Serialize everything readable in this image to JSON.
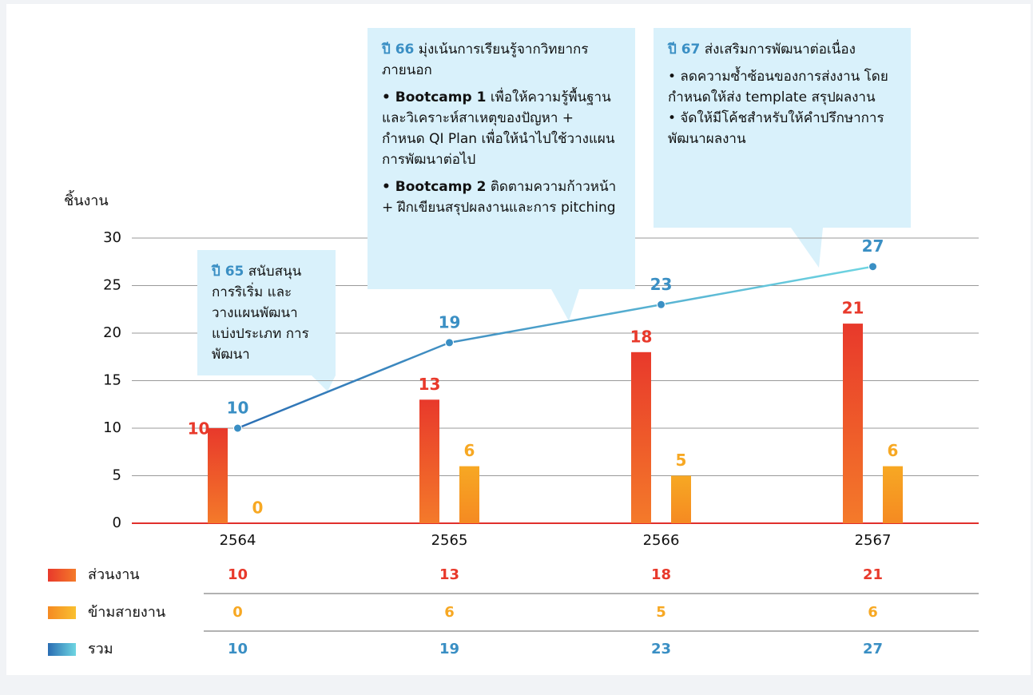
{
  "chart_data": {
    "type": "bar",
    "y_label": "ชิ้นงาน",
    "categories": [
      "2564",
      "2565",
      "2566",
      "2567"
    ],
    "ylim": [
      0,
      30
    ],
    "yticks": [
      0,
      5,
      10,
      15,
      20,
      25,
      30
    ],
    "grid": true,
    "series": [
      {
        "name": "ส่วนงาน",
        "type": "bar",
        "color": "#e8392b",
        "values": [
          10,
          13,
          18,
          21
        ]
      },
      {
        "name": "ข้ามสายงาน",
        "type": "bar",
        "color": "#f7a823",
        "values": [
          0,
          6,
          5,
          6
        ]
      },
      {
        "name": "รวม",
        "type": "line",
        "color": "#3a8fc4",
        "values": [
          10,
          19,
          23,
          27
        ]
      }
    ],
    "annotations": [
      {
        "title": "ปี 65",
        "text": "สนับสนุนการริเริ่ม และวางแผนพัฒนา แบ่งประเภท การพัฒนา",
        "items": []
      },
      {
        "title": "ปี 66",
        "text": "มุ่งเน้นการเรียนรู้จากวิทยากรภายนอก",
        "items": [
          {
            "bold": "• Bootcamp 1",
            "text": "เพื่อให้ความรู้พื้นฐาน และวิเคราะห์สาเหตุของปัญหา + กำหนด QI Plan เพื่อให้นำไปใช้วางแผนการพัฒนาต่อไป"
          },
          {
            "bold": "• Bootcamp 2",
            "text": "ติดตามความก้าวหน้า + ฝึกเขียนสรุปผลงานและการ pitching"
          }
        ]
      },
      {
        "title": "ปี 67",
        "text": "ส่งเสริมการพัฒนาต่อเนื่อง",
        "items": [
          "• ลดความซ้ำซ้อนของการส่งงาน โดยกำหนดให้ส่ง template สรุปผลงาน",
          "• จัดให้มีโค้ชสำหรับให้คำปรึกษาการพัฒนาผลงาน"
        ]
      }
    ]
  }
}
